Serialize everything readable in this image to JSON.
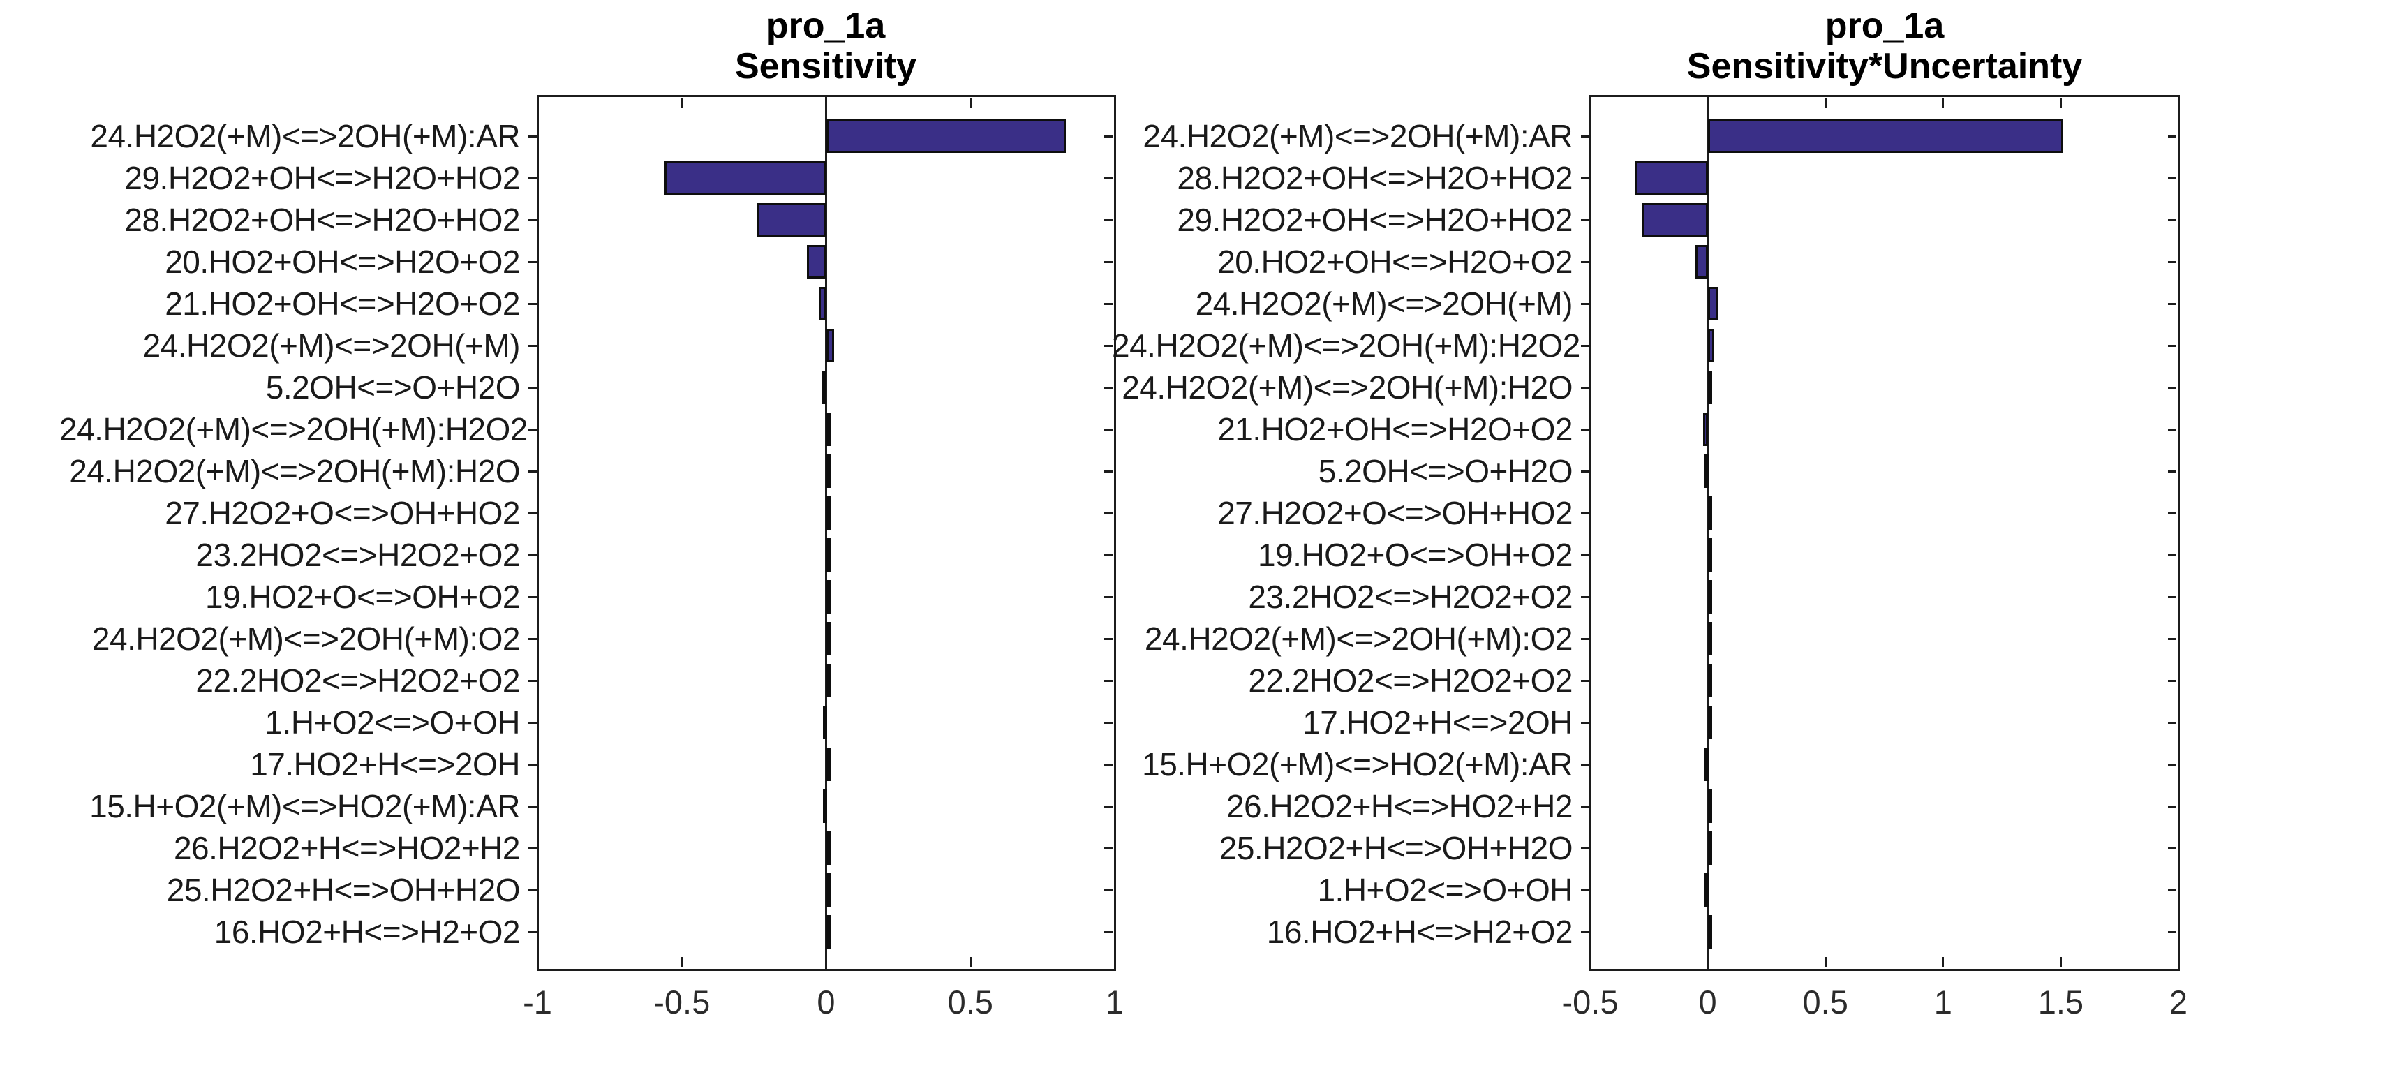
{
  "figure": {
    "background": "#ffffff",
    "axis_color": "#1c1c1c",
    "bar_fill_color": "#3a2f87",
    "bar_edge_color": "#0e0e0e"
  },
  "chart_data": [
    {
      "type": "bar",
      "orientation": "horizontal",
      "title_lines": [
        "pro_1a",
        "Sensitivity"
      ],
      "xlim": [
        -1,
        1
      ],
      "x_ticks": [
        -1,
        -0.5,
        0,
        0.5,
        1
      ],
      "x_tick_labels": [
        "-1",
        "-0.5",
        "0",
        "0.5",
        "1"
      ],
      "grid": false,
      "zero_line": true,
      "categories": [
        "24.H2O2(+M)<=>2OH(+M):AR",
        "29.H2O2+OH<=>H2O+HO2",
        "28.H2O2+OH<=>H2O+HO2",
        "20.HO2+OH<=>H2O+O2",
        "21.HO2+OH<=>H2O+O2",
        "24.H2O2(+M)<=>2OH(+M)",
        "5.2OH<=>O+H2O",
        "24.H2O2(+M)<=>2OH(+M):H2O2",
        "24.H2O2(+M)<=>2OH(+M):H2O",
        "27.H2O2+O<=>OH+HO2",
        "23.2HO2<=>H2O2+O2",
        "19.HO2+O<=>OH+O2",
        "24.H2O2(+M)<=>2OH(+M):O2",
        "22.2HO2<=>H2O2+O2",
        "1.H+O2<=>O+OH",
        "17.HO2+H<=>2OH",
        "15.H+O2(+M)<=>HO2(+M):AR",
        "26.H2O2+H<=>HO2+H2",
        "25.H2O2+H<=>OH+H2O",
        "16.HO2+H<=>H2+O2"
      ],
      "values": [
        0.83,
        -0.56,
        -0.24,
        -0.067,
        -0.026,
        0.027,
        -0.016,
        0.018,
        0.015,
        0.006,
        0.004,
        0.003,
        0.003,
        0.002,
        -0.002,
        0.002,
        -0.002,
        0.001,
        0.001,
        0.001
      ]
    },
    {
      "type": "bar",
      "orientation": "horizontal",
      "title_lines": [
        "pro_1a",
        "Sensitivity*Uncertainty"
      ],
      "xlim": [
        -0.5,
        2
      ],
      "x_ticks": [
        -0.5,
        0,
        0.5,
        1,
        1.5,
        2
      ],
      "x_tick_labels": [
        "-0.5",
        "0",
        "0.5",
        "1",
        "1.5",
        "2"
      ],
      "grid": false,
      "zero_line": true,
      "categories": [
        "24.H2O2(+M)<=>2OH(+M):AR",
        "28.H2O2+OH<=>H2O+HO2",
        "29.H2O2+OH<=>H2O+HO2",
        "20.HO2+OH<=>H2O+O2",
        "24.H2O2(+M)<=>2OH(+M)",
        "24.H2O2(+M)<=>2OH(+M):H2O2",
        "24.H2O2(+M)<=>2OH(+M):H2O",
        "21.HO2+OH<=>H2O+O2",
        "5.2OH<=>O+H2O",
        "27.H2O2+O<=>OH+HO2",
        "19.HO2+O<=>OH+O2",
        "23.2HO2<=>H2O2+O2",
        "24.H2O2(+M)<=>2OH(+M):O2",
        "22.2HO2<=>H2O2+O2",
        "17.HO2+H<=>2OH",
        "15.H+O2(+M)<=>HO2(+M):AR",
        "26.H2O2+H<=>HO2+H2",
        "25.H2O2+H<=>OH+H2O",
        "1.H+O2<=>O+OH",
        "16.HO2+H<=>H2+O2"
      ],
      "values": [
        1.51,
        -0.31,
        -0.28,
        -0.051,
        0.046,
        0.027,
        0.02,
        -0.021,
        -0.015,
        0.005,
        0.003,
        0.003,
        0.002,
        0.002,
        0.002,
        -0.002,
        0.001,
        0.001,
        -0.001,
        0.001
      ]
    }
  ]
}
